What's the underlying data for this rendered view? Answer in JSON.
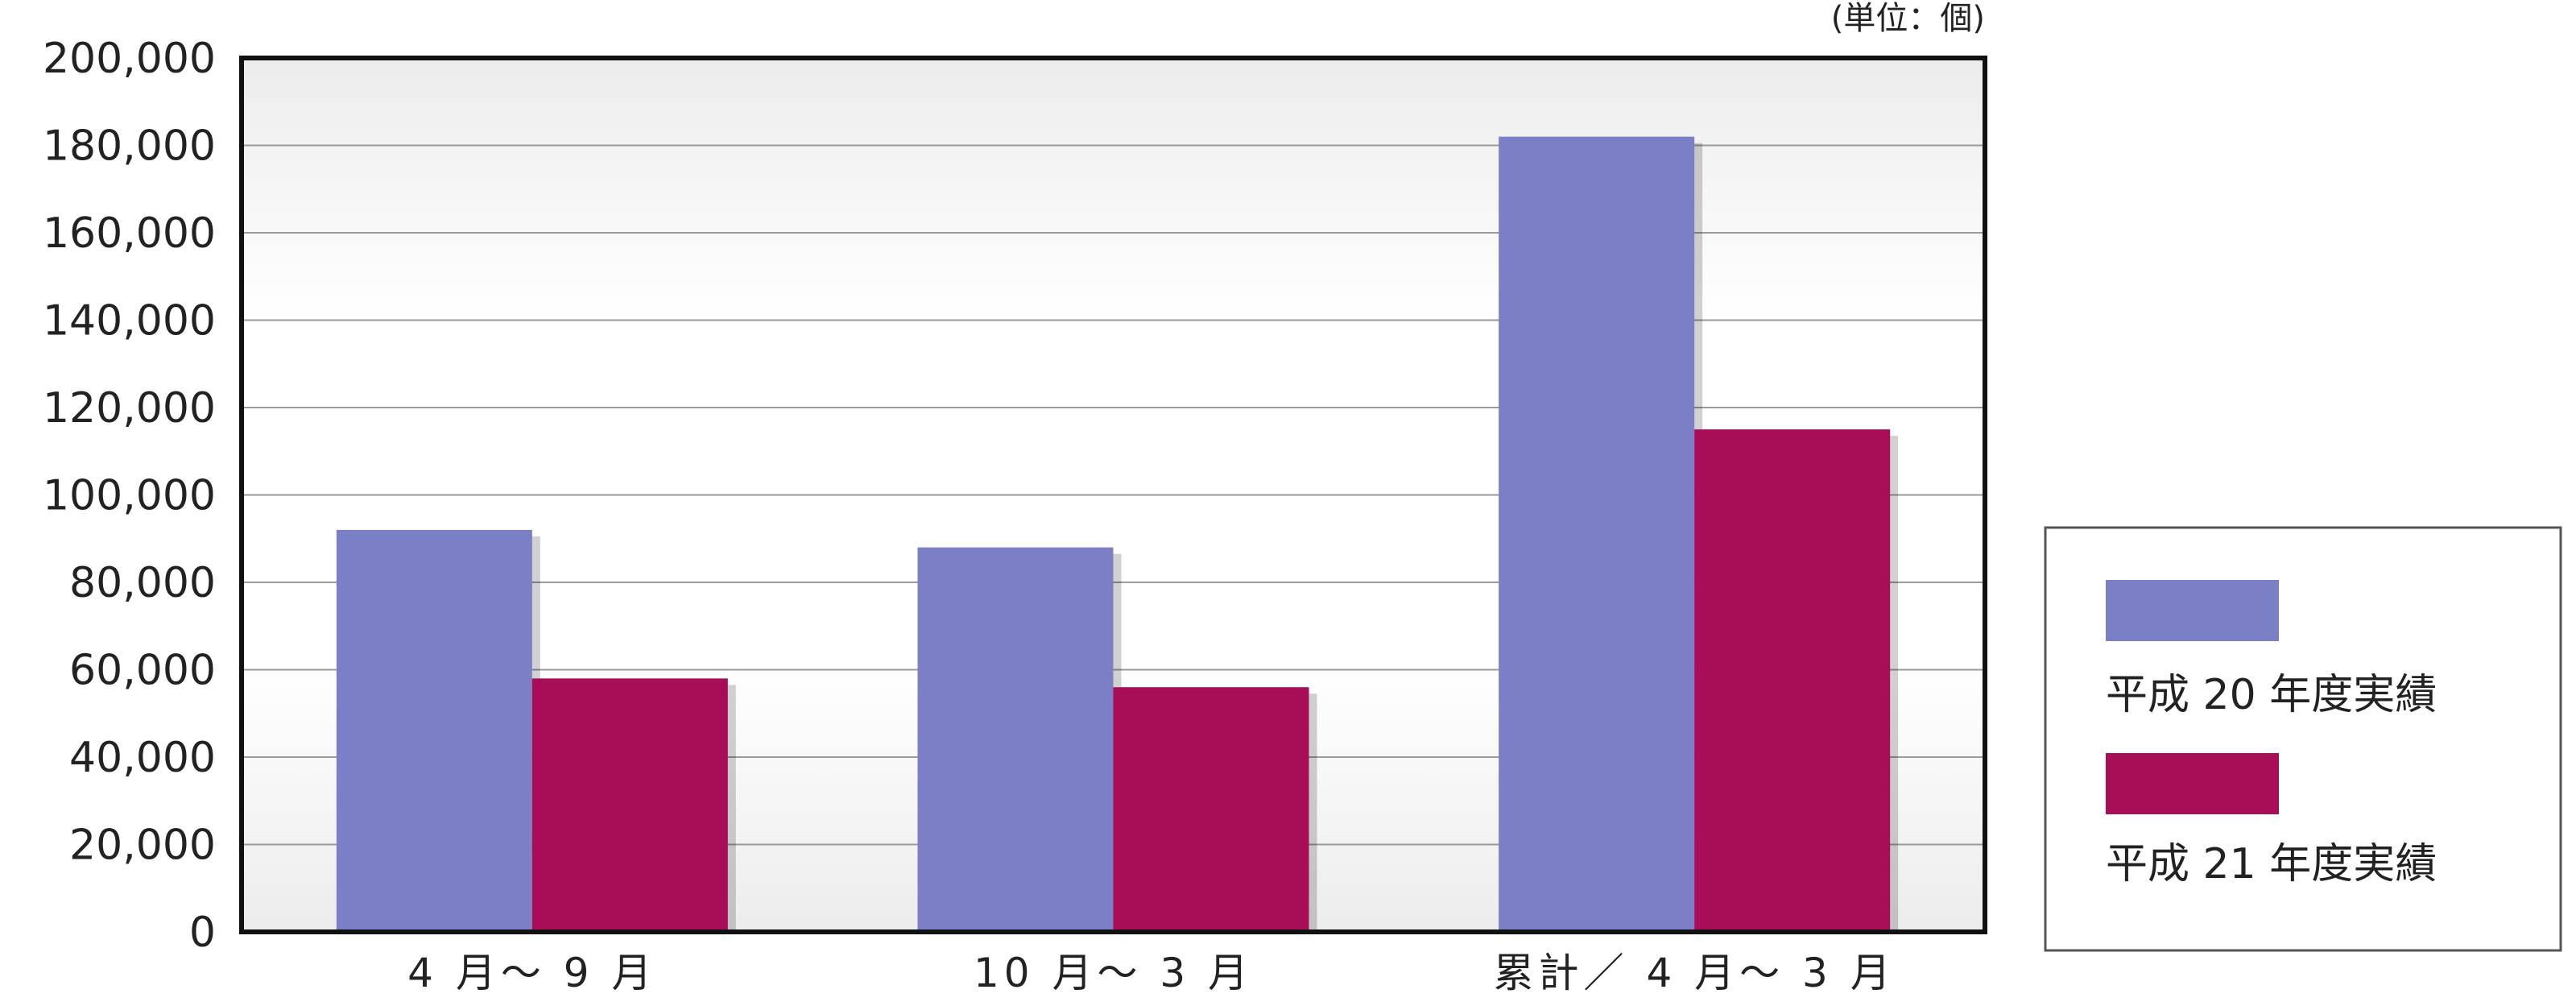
{
  "chart_data": {
    "type": "bar",
    "unit_note": "(単位：個)",
    "categories": [
      "4 月～ 9 月",
      "10 月～ 3 月",
      "累計／ 4 月～ 3 月"
    ],
    "series": [
      {
        "name": "平成 20 年度実績",
        "color": "#7b80c6",
        "values": [
          92000,
          88000,
          182000
        ]
      },
      {
        "name": "平成 21 年度実績",
        "color": "#a80d57",
        "values": [
          58000,
          56000,
          115000
        ]
      }
    ],
    "yticks": [
      "0",
      "20,000",
      "40,000",
      "60,000",
      "80,000",
      "100,000",
      "120,000",
      "140,000",
      "160,000",
      "180,000",
      "200,000"
    ],
    "ylim": [
      0,
      200000
    ],
    "grid": true,
    "legend_position": "right"
  }
}
